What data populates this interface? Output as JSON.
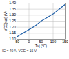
{
  "chart_data": {
    "type": "line",
    "x_label": "Tvj (°C)",
    "y_label": "VCE(sat) (V)",
    "caption": "IC = 40 A, VGE = 15 V",
    "x": [
      -50,
      -25,
      0,
      25,
      50,
      75,
      100,
      125,
      150
    ],
    "series": [
      {
        "name": "VCE(sat)",
        "color": "#1f5fa8",
        "values": [
          1.12,
          1.15,
          1.18,
          1.21,
          1.25,
          1.28,
          1.31,
          1.35,
          1.39
        ]
      }
    ],
    "xlim": [
      -50,
      150
    ],
    "xticks": [
      -50,
      0,
      50,
      100,
      150
    ],
    "ylim": [
      1.1,
      1.4
    ],
    "yticks": [
      {
        "value": 1.1,
        "label": "1.10"
      },
      {
        "value": 1.15,
        "label": "1.15"
      },
      {
        "value": 1.2,
        "label": "1.20"
      },
      {
        "value": 1.25,
        "label": "1.25"
      },
      {
        "value": 1.3,
        "label": "1.30"
      },
      {
        "value": 1.35,
        "label": "1.35"
      },
      {
        "value": 1.4,
        "label": "1.40"
      }
    ],
    "grid": true
  }
}
